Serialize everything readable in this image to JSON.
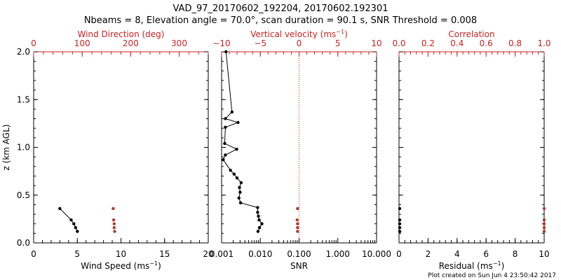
{
  "title_line1": "VAD_97_20170602_192204, 20170602.192301",
  "title_line2": "Nbeams = 8, Elevation angle = 70.0°, scan duration = 90.1 s, SNR Threshold = 0.008",
  "footer": "Plot created on Sun Jun  4 23:50:42 2017",
  "colors": {
    "axis": "#000000",
    "accent": "#cc2222",
    "data_red": "#b03a2e"
  },
  "chart_data": [
    {
      "type": "scatter",
      "name": "wind-panel",
      "ylabel": "z (km AGL)",
      "ylim": [
        0,
        2
      ],
      "yticks": [
        0,
        0.5,
        1,
        1.5,
        2
      ],
      "yticklabels": [
        "0.0",
        "0.5",
        "1.0",
        "1.5",
        "2.0"
      ],
      "bottom_axis": {
        "label": "Wind Speed (ms",
        "label_sup": "−1",
        "label_end": ")",
        "range": [
          0,
          20
        ],
        "ticks": [
          0,
          5,
          10,
          15,
          20
        ],
        "ticklabels": [
          "0",
          "5",
          "10",
          "15",
          "20"
        ]
      },
      "top_axis": {
        "label": "Wind Direction (deg)",
        "range": [
          0,
          360
        ],
        "ticks": [
          0,
          100,
          200,
          300
        ],
        "ticklabels": [
          "0",
          "100",
          "200",
          "300"
        ]
      },
      "series": [
        {
          "name": "Wind Speed",
          "axis": "bottom",
          "color": "#000000",
          "line": true,
          "points": [
            [
              3.0,
              0.36
            ],
            [
              4.3,
              0.24
            ],
            [
              4.6,
              0.2
            ],
            [
              4.8,
              0.16
            ],
            [
              5.0,
              0.12
            ]
          ]
        },
        {
          "name": "Wind Direction",
          "axis": "top",
          "color": "#b03a2e",
          "line": false,
          "points": [
            [
              164,
              0.36
            ],
            [
              165,
              0.24
            ],
            [
              166,
              0.2
            ],
            [
              166,
              0.16
            ],
            [
              167,
              0.12
            ]
          ]
        }
      ]
    },
    {
      "type": "line",
      "name": "velocity-snr-panel",
      "ylim": [
        0,
        2
      ],
      "yticks": [
        0,
        0.5,
        1,
        1.5,
        2
      ],
      "bottom_axis": {
        "label": "SNR",
        "scale": "log",
        "range": [
          0.001,
          10
        ],
        "ticks": [
          0.001,
          0.01,
          0.1,
          1,
          10
        ],
        "ticklabels": [
          "0.001",
          "0.010",
          "0.100",
          "1.000",
          "10.000"
        ]
      },
      "top_axis": {
        "label": "Vertical velocity (ms",
        "label_sup": "−1",
        "label_end": ")",
        "range": [
          -10,
          10
        ],
        "ticks": [
          -10,
          -5,
          0,
          5,
          10
        ],
        "ticklabels": [
          "−10",
          "−5",
          "0",
          "5",
          "10"
        ]
      },
      "reference_line": {
        "axis": "top",
        "value": 0,
        "style": "dotted",
        "color": "#cc2222"
      },
      "series": [
        {
          "name": "SNR",
          "axis": "bottom",
          "color": "#000000",
          "line": true,
          "points": [
            [
              0.0013,
              2.0
            ],
            [
              0.00185,
              1.37
            ],
            [
              0.00125,
              1.3
            ],
            [
              0.00265,
              1.26
            ],
            [
              0.00125,
              1.21
            ],
            [
              0.0012,
              1.04
            ],
            [
              0.00245,
              0.98
            ],
            [
              0.00125,
              0.92
            ],
            [
              0.0011,
              0.87
            ],
            [
              0.0017,
              0.76
            ],
            [
              0.0021,
              0.72
            ],
            [
              0.0025,
              0.68
            ],
            [
              0.0032,
              0.63
            ],
            [
              0.0029,
              0.58
            ],
            [
              0.003,
              0.53
            ],
            [
              0.0028,
              0.47
            ],
            [
              0.0031,
              0.42
            ],
            [
              0.0085,
              0.37
            ],
            [
              0.0085,
              0.32
            ],
            [
              0.0089,
              0.28
            ],
            [
              0.0093,
              0.24
            ],
            [
              0.011,
              0.2
            ],
            [
              0.0095,
              0.16
            ],
            [
              0.0087,
              0.12
            ]
          ]
        },
        {
          "name": "Vertical velocity",
          "axis": "top",
          "color": "#b03a2e",
          "line": false,
          "points": [
            [
              -0.2,
              0.36
            ],
            [
              -0.25,
              0.24
            ],
            [
              -0.2,
              0.2
            ],
            [
              -0.2,
              0.16
            ],
            [
              -0.2,
              0.12
            ]
          ]
        }
      ]
    },
    {
      "type": "scatter",
      "name": "correlation-residual-panel",
      "ylim": [
        0,
        2
      ],
      "yticks": [
        0,
        0.5,
        1,
        1.5,
        2
      ],
      "bottom_axis": {
        "label": "Residual (ms",
        "label_sup": "−1",
        "label_end": ")",
        "range": [
          0,
          10
        ],
        "ticks": [
          0,
          2,
          4,
          6,
          8,
          10
        ],
        "ticklabels": [
          "0",
          "2",
          "4",
          "6",
          "8",
          "10"
        ]
      },
      "top_axis": {
        "label": "Correlation",
        "range": [
          0,
          1
        ],
        "ticks": [
          0,
          0.2,
          0.4,
          0.6,
          0.8,
          1
        ],
        "ticklabels": [
          "0.0",
          "0.2",
          "0.4",
          "0.6",
          "0.8",
          "1.0"
        ]
      },
      "series": [
        {
          "name": "Residual",
          "axis": "bottom",
          "color": "#000000",
          "line": false,
          "points": [
            [
              0.05,
              0.36
            ],
            [
              0.05,
              0.24
            ],
            [
              0.05,
              0.2
            ],
            [
              0.05,
              0.16
            ],
            [
              0.05,
              0.12
            ]
          ]
        },
        {
          "name": "Correlation",
          "axis": "top",
          "color": "#b03a2e",
          "line": false,
          "points": [
            [
              1.0,
              0.36
            ],
            [
              1.0,
              0.24
            ],
            [
              1.0,
              0.2
            ],
            [
              1.0,
              0.16
            ],
            [
              1.0,
              0.12
            ]
          ]
        }
      ]
    }
  ]
}
